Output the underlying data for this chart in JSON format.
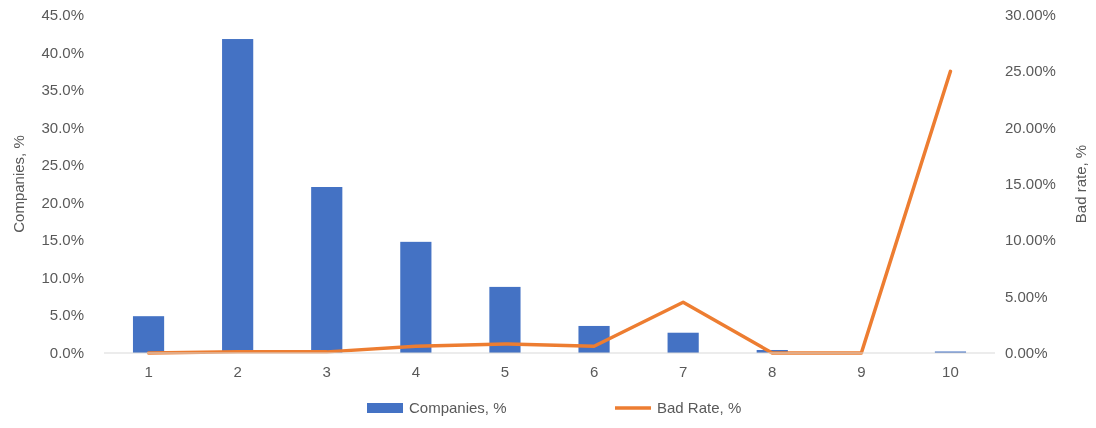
{
  "chart_data": {
    "type": "bar",
    "categories": [
      "1",
      "2",
      "3",
      "4",
      "5",
      "6",
      "7",
      "8",
      "9",
      "10"
    ],
    "series": [
      {
        "name": "Companies, %",
        "color": "#4472c4",
        "values": [
          4.9,
          41.8,
          22.1,
          14.8,
          8.8,
          3.6,
          2.7,
          0.4,
          0,
          0.2
        ]
      },
      {
        "name": "Bad Rate, %",
        "type": "line",
        "axis": "y2",
        "color": "#ed7d31",
        "values": [
          0,
          0.1,
          0.1,
          0.6,
          0.8,
          0.6,
          4.5,
          0,
          0,
          25
        ]
      }
    ],
    "ylabel": "Companies, %",
    "y2label": "Bad rate, %",
    "ylim": [
      0,
      45
    ],
    "yticks": [
      {
        "value": 0,
        "label": "0.0%"
      },
      {
        "value": 5,
        "label": "5.0%"
      },
      {
        "value": 10,
        "label": "10.0%"
      },
      {
        "value": 15,
        "label": "15.0%"
      },
      {
        "value": 20,
        "label": "20.0%"
      },
      {
        "value": 25,
        "label": "25.0%"
      },
      {
        "value": 30,
        "label": "30.0%"
      },
      {
        "value": 35,
        "label": "35.0%"
      },
      {
        "value": 40,
        "label": "40.0%"
      },
      {
        "value": 45,
        "label": "45.0%"
      }
    ],
    "y2lim": [
      0,
      30
    ],
    "y2ticks": [
      {
        "value": 0,
        "label": "0.00%"
      },
      {
        "value": 5,
        "label": "5.00%"
      },
      {
        "value": 10,
        "label": "10.00%"
      },
      {
        "value": 15,
        "label": "15.00%"
      },
      {
        "value": 20,
        "label": "20.00%"
      },
      {
        "value": 25,
        "label": "25.00%"
      },
      {
        "value": 30,
        "label": "30.00%"
      }
    ],
    "grid": false,
    "legend": "bottom",
    "marker": "none",
    "line_style": "solid"
  }
}
